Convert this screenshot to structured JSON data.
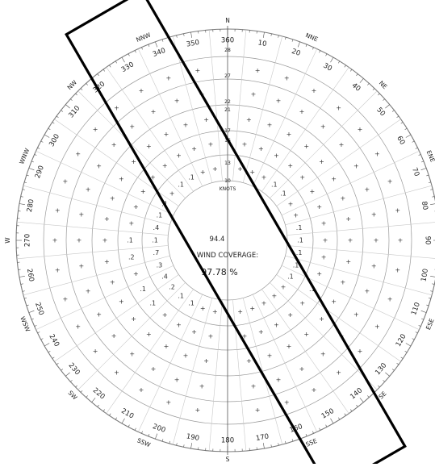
{
  "chart_data": {
    "type": "wind rose",
    "center_value": "94.4",
    "coverage_label": "WIND COVERAGE:",
    "coverage_value": "97.78 %",
    "units_label": "KNOTS",
    "speed_rings": [
      {
        "label": "10",
        "speed": 10
      },
      {
        "label": "13",
        "speed": 13
      },
      {
        "label": "16",
        "speed": 16
      },
      {
        "label": "17",
        "speed": 17
      },
      {
        "label": "21",
        "speed": 21
      },
      {
        "label": "22",
        "speed": 22
      },
      {
        "label": "27",
        "speed": 27
      },
      {
        "label": "28",
        "speed": 28
      }
    ],
    "direction_labels": [
      "360",
      "10",
      "20",
      "30",
      "40",
      "50",
      "60",
      "70",
      "80",
      "90",
      "100",
      "110",
      "120",
      "130",
      "140",
      "150",
      "160",
      "170",
      "180",
      "190",
      "200",
      "210",
      "220",
      "230",
      "240",
      "250",
      "260",
      "270",
      "280",
      "290",
      "300",
      "310",
      "320",
      "330",
      "340",
      "350"
    ],
    "cardinal_labels": [
      {
        "label": "N",
        "bearing": 0
      },
      {
        "label": "NNE",
        "bearing": 22.5
      },
      {
        "label": "NE",
        "bearing": 45
      },
      {
        "label": "ENE",
        "bearing": 67.5
      },
      {
        "label": "E",
        "bearing": 90
      },
      {
        "label": "ESE",
        "bearing": 112.5
      },
      {
        "label": "SE",
        "bearing": 135
      },
      {
        "label": "SSE",
        "bearing": 157.5
      },
      {
        "label": "S",
        "bearing": 180
      },
      {
        "label": "SSW",
        "bearing": 202.5
      },
      {
        "label": "SW",
        "bearing": 225
      },
      {
        "label": "WSW",
        "bearing": 247.5
      },
      {
        "label": "W",
        "bearing": 270
      },
      {
        "label": "WNW",
        "bearing": 292.5
      },
      {
        "label": "NW",
        "bearing": 315
      },
      {
        "label": "NNW",
        "bearing": 337.5
      }
    ],
    "sector_values": [
      {
        "bearing": 320,
        "ring": 1,
        "value": ".1"
      },
      {
        "bearing": 330,
        "ring": 1,
        "value": ".1"
      },
      {
        "bearing": 300,
        "ring": 1,
        "value": ".1"
      },
      {
        "bearing": 290,
        "ring": 1,
        "value": ".1"
      },
      {
        "bearing": 280,
        "ring": 1,
        "value": ".4"
      },
      {
        "bearing": 270,
        "ring": 1,
        "value": ".1"
      },
      {
        "bearing": 260,
        "ring": 1,
        "value": ".7"
      },
      {
        "bearing": 250,
        "ring": 1,
        "value": ".3"
      },
      {
        "bearing": 240,
        "ring": 1,
        "value": ".4"
      },
      {
        "bearing": 230,
        "ring": 1,
        "value": ".2"
      },
      {
        "bearing": 220,
        "ring": 1,
        "value": ".1"
      },
      {
        "bearing": 210,
        "ring": 1,
        "value": ".1"
      },
      {
        "bearing": 90,
        "ring": 1,
        "value": ".1"
      },
      {
        "bearing": 80,
        "ring": 1,
        "value": ".1"
      },
      {
        "bearing": 100,
        "ring": 1,
        "value": ".1"
      },
      {
        "bearing": 110,
        "ring": 1,
        "value": ".1"
      },
      {
        "bearing": 120,
        "ring": 1,
        "value": ".1"
      },
      {
        "bearing": 50,
        "ring": 1,
        "value": ".1"
      },
      {
        "bearing": 40,
        "ring": 1,
        "value": ".1"
      },
      {
        "bearing": 260,
        "ring": 2,
        "value": ".2"
      },
      {
        "bearing": 240,
        "ring": 2,
        "value": ".1"
      },
      {
        "bearing": 270,
        "ring": 2,
        "value": ".1"
      },
      {
        "bearing": 230,
        "ring": 2,
        "value": ".1"
      },
      {
        "bearing": 120,
        "ring": 2,
        "value": ".1"
      }
    ]
  },
  "runway_box": {
    "heading": 150
  }
}
